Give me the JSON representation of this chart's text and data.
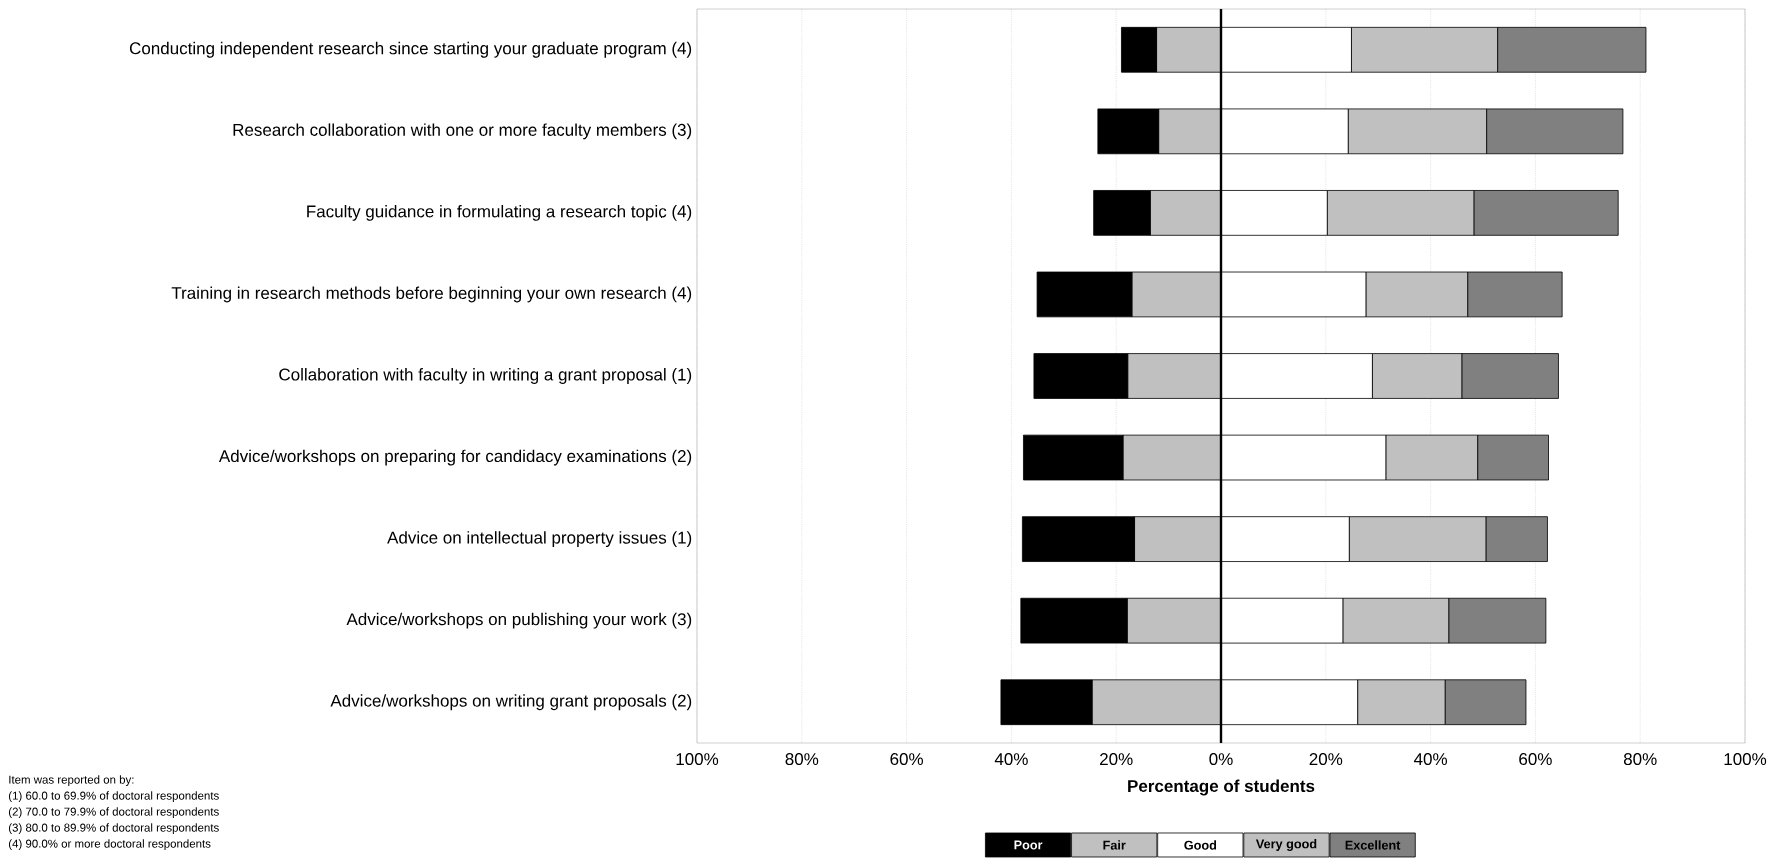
{
  "chart_data": {
    "type": "bar",
    "orientation": "horizontal",
    "stacked": true,
    "xlabel": "Percentage of students",
    "categories": [
      "Conducting independent research since starting your graduate program (4)",
      "Research collaboration with one or more faculty members (3)",
      "Faculty guidance in formulating a research topic  (4)",
      "Training in research methods before beginning your own research  (4)",
      "Collaboration with faculty in writing a grant proposal (1)",
      "Advice/workshops on preparing for candidacy examinations (2)",
      "Advice on intellectual property issues (1)",
      "Advice/workshops on publishing your work (3)",
      "Advice/workshops on writing grant proposals (2)"
    ],
    "series": [
      {
        "name": "Fair",
        "color": "#c0c0c0",
        "values": [
          -12.3,
          -11.9,
          -13.5,
          -17.0,
          -17.8,
          -18.7,
          -16.5,
          -17.9,
          -24.6
        ]
      },
      {
        "name": "Poor",
        "color": "#000000",
        "values": [
          -6.7,
          -11.6,
          -10.8,
          -18.1,
          -17.9,
          -19.0,
          -21.4,
          -20.3,
          -17.4
        ]
      },
      {
        "name": "Good",
        "color": "#ffffff",
        "values": [
          24.9,
          24.3,
          20.3,
          27.7,
          28.9,
          31.5,
          24.5,
          23.3,
          26.1
        ]
      },
      {
        "name": "Very good",
        "color": "#c0c0c0",
        "values": [
          27.9,
          26.4,
          28.0,
          19.4,
          17.1,
          17.5,
          26.1,
          20.2,
          16.7
        ]
      },
      {
        "name": "Excellent",
        "color": "#808080",
        "values": [
          28.3,
          26.0,
          27.5,
          18.0,
          18.4,
          13.5,
          11.7,
          18.5,
          15.4
        ]
      }
    ],
    "xlim": [
      -100,
      100
    ],
    "xticks": [
      {
        "value": -100,
        "label": "100%"
      },
      {
        "value": -80,
        "label": "80%"
      },
      {
        "value": -60,
        "label": "60%"
      },
      {
        "value": -40,
        "label": "40%"
      },
      {
        "value": -20,
        "label": "20%"
      },
      {
        "value": 0,
        "label": "0%"
      },
      {
        "value": 20,
        "label": "20%"
      },
      {
        "value": 40,
        "label": "40%"
      },
      {
        "value": 60,
        "label": "60%"
      },
      {
        "value": 80,
        "label": "80%"
      },
      {
        "value": 100,
        "label": "100%"
      }
    ],
    "ref_lines": [
      {
        "axis": "x",
        "value": 0,
        "color": "#000000"
      }
    ],
    "grid": "x",
    "legend": "bottom",
    "annotations": [
      "Item was reported on by:",
      "(1) 60.0 to 69.9% of doctoral respondents",
      "(2) 70.0 to 79.9% of doctoral respondents",
      "(3) 80.0 to 89.9% of doctoral respondents",
      "(4) 90.0% or more doctoral respondents"
    ]
  }
}
